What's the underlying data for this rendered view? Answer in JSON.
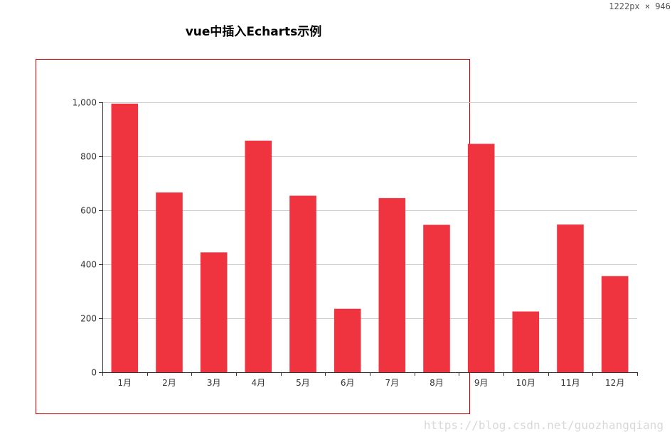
{
  "screen": {
    "dimensions_label": "1222px × 946"
  },
  "page": {
    "title": "vue中插入Echarts示例",
    "watermark": "https://blog.csdn.net/guozhangqiang"
  },
  "colors": {
    "bar": "#f0343f",
    "frame": "#c00000",
    "grid": "#cccccc",
    "axis": "#333333"
  },
  "chart_data": {
    "type": "bar",
    "categories": [
      "1月",
      "2月",
      "3月",
      "4月",
      "5月",
      "6月",
      "7月",
      "8月",
      "9月",
      "10月",
      "11月",
      "12月"
    ],
    "values": [
      995,
      666,
      444,
      858,
      654,
      235,
      645,
      546,
      846,
      225,
      547,
      356
    ],
    "y_ticks": [
      "0",
      "200",
      "400",
      "600",
      "800",
      "1,000"
    ],
    "ylim": [
      0,
      1000
    ],
    "title": "",
    "xlabel": "",
    "ylabel": "",
    "grid": true,
    "legend": "none"
  }
}
